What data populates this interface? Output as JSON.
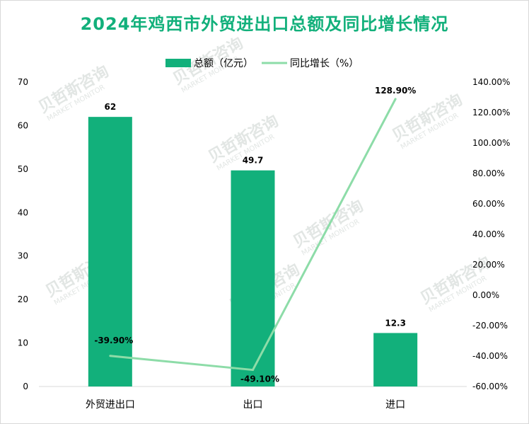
{
  "chart_data": {
    "type": "bar+line",
    "title": "2024年鸡西市外贸进出口总额及同比增长情况",
    "categories": [
      "外贸进出口",
      "出口",
      "进口"
    ],
    "series": [
      {
        "name": "总额（亿元）",
        "type": "bar",
        "axis": "left",
        "values": [
          62,
          49.7,
          12.3
        ],
        "labels": [
          "62",
          "49.7",
          "12.3"
        ],
        "color": "#12b07b"
      },
      {
        "name": "同比增长（%）",
        "type": "line",
        "axis": "right",
        "values": [
          -39.9,
          -49.1,
          128.9
        ],
        "labels": [
          "-39.90%",
          "-49.10%",
          "128.90%"
        ],
        "color": "#8ddca8"
      }
    ],
    "left_axis": {
      "min": 0,
      "max": 70,
      "step": 10,
      "ticks": [
        "0",
        "10",
        "20",
        "30",
        "40",
        "50",
        "60",
        "70"
      ]
    },
    "right_axis": {
      "min": -60,
      "max": 140,
      "step": 20,
      "ticks": [
        "-60.00%",
        "-40.00%",
        "-20.00%",
        "0.00%",
        "20.00%",
        "40.00%",
        "60.00%",
        "80.00%",
        "100.00%",
        "120.00%",
        "140.00%"
      ]
    },
    "legend_position": "top-center",
    "grid": false
  },
  "watermark": {
    "text": "贝哲斯咨询",
    "subtext": "MARKET MONITOR"
  }
}
